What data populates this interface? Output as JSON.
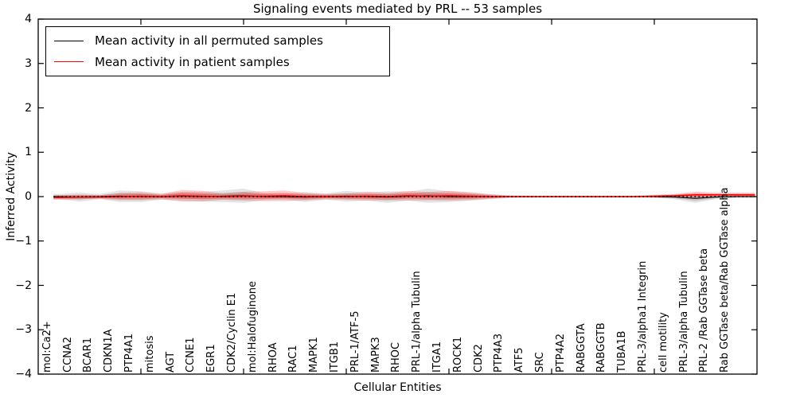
{
  "figure": {
    "title": "Signaling events mediated by PRL -- 53 samples",
    "xlabel": "Cellular Entities",
    "ylabel": "Inferred Activity"
  },
  "legend": {
    "entries": [
      {
        "label": "Mean activity in all permuted samples",
        "color": "#000000"
      },
      {
        "label": "Mean activity in patient samples",
        "color": "#ff0000"
      }
    ]
  },
  "chart_data": {
    "type": "line",
    "title": "Signaling events mediated by PRL -- 53 samples",
    "xlabel": "Cellular Entities",
    "ylabel": "Inferred Activity",
    "ylim": [
      -4,
      4
    ],
    "y_ticks": [
      -4,
      -3,
      -2,
      -1,
      0,
      1,
      2,
      3,
      4
    ],
    "grid": false,
    "legend_position": "upper left",
    "baseline": 0,
    "baseline_style": "dotted-black",
    "band_meaning": "mean ± std shaded envelope per series",
    "colors": {
      "permuted": "#000000",
      "patient": "#ff0000"
    },
    "categories": [
      "mol:Ca2+",
      "CCNA2",
      "BCAR1",
      "CDKN1A",
      "PTP4A1",
      "mitosis",
      "AGT",
      "CCNE1",
      "EGR1",
      "CDK2/Cyclin E1",
      "mol:Halofuginone",
      "RHOA",
      "RAC1",
      "MAPK1",
      "ITGB1",
      "PRL-1/ATF-5",
      "MAPK3",
      "RHOC",
      "PRL-1/alpha Tubulin",
      "ITGA1",
      "ROCK1",
      "CDK2",
      "PTP4A3",
      "ATF5",
      "SRC",
      "PTP4A2",
      "RABGGTA",
      "RABGGTB",
      "TUBA1B",
      "PRL-3/alpha1 Integrin",
      "cell motility",
      "PRL-3/alpha Tubulin",
      "PRL-2 /Rab GGTase beta",
      "Rab GGTase beta/Rab GGTase alpha"
    ],
    "series": [
      {
        "name": "Mean activity in all permuted samples",
        "color": "#000000",
        "mean": [
          0,
          -0.01,
          0,
          0.01,
          0,
          0,
          0.01,
          0,
          0.01,
          0.02,
          0,
          0,
          -0.01,
          0,
          0.01,
          0,
          -0.01,
          0.01,
          0.02,
          0,
          0,
          0,
          0,
          0,
          0,
          0,
          0,
          0,
          0,
          0,
          -0.01,
          -0.04,
          -0.01,
          0
        ],
        "std": [
          0.06,
          0.1,
          0.06,
          0.13,
          0.12,
          0.07,
          0.1,
          0.11,
          0.13,
          0.16,
          0.08,
          0.07,
          0.11,
          0.07,
          0.12,
          0.09,
          0.13,
          0.1,
          0.16,
          0.12,
          0.09,
          0.06,
          0.03,
          0.02,
          0.02,
          0.02,
          0.02,
          0.02,
          0.02,
          0.03,
          0.05,
          0.1,
          0.05,
          0.03
        ]
      },
      {
        "name": "Mean activity in patient samples",
        "color": "#ff0000",
        "mean": [
          -0.02,
          -0.01,
          -0.01,
          0,
          0.01,
          0,
          0.02,
          0.01,
          0,
          0.01,
          0.01,
          0.02,
          0,
          0,
          0,
          0.01,
          0,
          0.02,
          0.01,
          0.02,
          0.01,
          0,
          0,
          0,
          0,
          0,
          0,
          0,
          0,
          0.01,
          0.02,
          0.04,
          0.04,
          0.04
        ],
        "std": [
          0.05,
          0.05,
          0.04,
          0.08,
          0.09,
          0.06,
          0.13,
          0.12,
          0.07,
          0.1,
          0.11,
          0.12,
          0.08,
          0.06,
          0.07,
          0.1,
          0.08,
          0.11,
          0.09,
          0.11,
          0.09,
          0.05,
          0.02,
          0.02,
          0.02,
          0.02,
          0.02,
          0.02,
          0.02,
          0.03,
          0.04,
          0.07,
          0.05,
          0.05
        ]
      }
    ]
  }
}
